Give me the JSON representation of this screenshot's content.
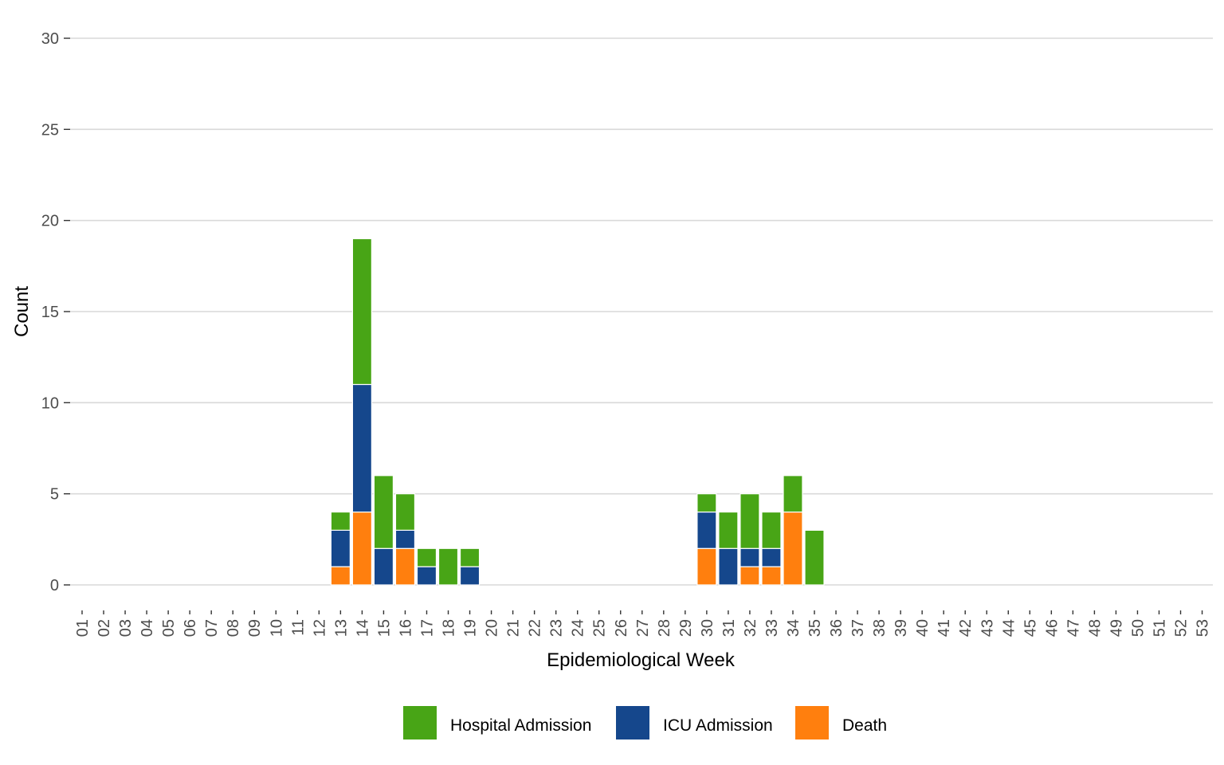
{
  "chart_data": {
    "type": "bar",
    "stacked": true,
    "title": "",
    "xlabel": "Epidemiological Week",
    "ylabel": "Count",
    "ylim": [
      0,
      30
    ],
    "yticks": [
      0,
      5,
      10,
      15,
      20,
      25,
      30
    ],
    "grid": true,
    "legend_position": "bottom",
    "categories": [
      "01",
      "02",
      "03",
      "04",
      "05",
      "06",
      "07",
      "08",
      "09",
      "10",
      "11",
      "12",
      "13",
      "14",
      "15",
      "16",
      "17",
      "18",
      "19",
      "20",
      "21",
      "22",
      "23",
      "24",
      "25",
      "26",
      "27",
      "28",
      "29",
      "30",
      "31",
      "32",
      "33",
      "34",
      "35",
      "36",
      "37",
      "38",
      "39",
      "40",
      "41",
      "42",
      "43",
      "44",
      "45",
      "46",
      "47",
      "48",
      "49",
      "50",
      "51",
      "52",
      "53"
    ],
    "series": [
      {
        "name": "Death",
        "color": "#ff7f0e",
        "values": [
          0,
          0,
          0,
          0,
          0,
          0,
          0,
          0,
          0,
          0,
          0,
          0,
          1,
          4,
          0,
          2,
          0,
          0,
          0,
          0,
          0,
          0,
          0,
          0,
          0,
          0,
          0,
          0,
          0,
          2,
          0,
          1,
          1,
          4,
          0,
          0,
          0,
          0,
          0,
          0,
          0,
          0,
          0,
          0,
          0,
          0,
          0,
          0,
          0,
          0,
          0,
          0,
          0
        ]
      },
      {
        "name": "ICU Admission",
        "color": "#15478c",
        "values": [
          0,
          0,
          0,
          0,
          0,
          0,
          0,
          0,
          0,
          0,
          0,
          0,
          2,
          7,
          2,
          1,
          1,
          0,
          1,
          0,
          0,
          0,
          0,
          0,
          0,
          0,
          0,
          0,
          0,
          2,
          2,
          1,
          1,
          0,
          0,
          0,
          0,
          0,
          0,
          0,
          0,
          0,
          0,
          0,
          0,
          0,
          0,
          0,
          0,
          0,
          0,
          0,
          0
        ]
      },
      {
        "name": "Hospital Admission",
        "color": "#48a516",
        "values": [
          0,
          0,
          0,
          0,
          0,
          0,
          0,
          0,
          0,
          0,
          0,
          0,
          1,
          8,
          4,
          2,
          1,
          2,
          1,
          0,
          0,
          0,
          0,
          0,
          0,
          0,
          0,
          0,
          0,
          1,
          2,
          3,
          2,
          2,
          3,
          0,
          0,
          0,
          0,
          0,
          0,
          0,
          0,
          0,
          0,
          0,
          0,
          0,
          0,
          0,
          0,
          0,
          0
        ]
      }
    ],
    "legend": [
      "Hospital Admission",
      "ICU Admission",
      "Death"
    ]
  }
}
